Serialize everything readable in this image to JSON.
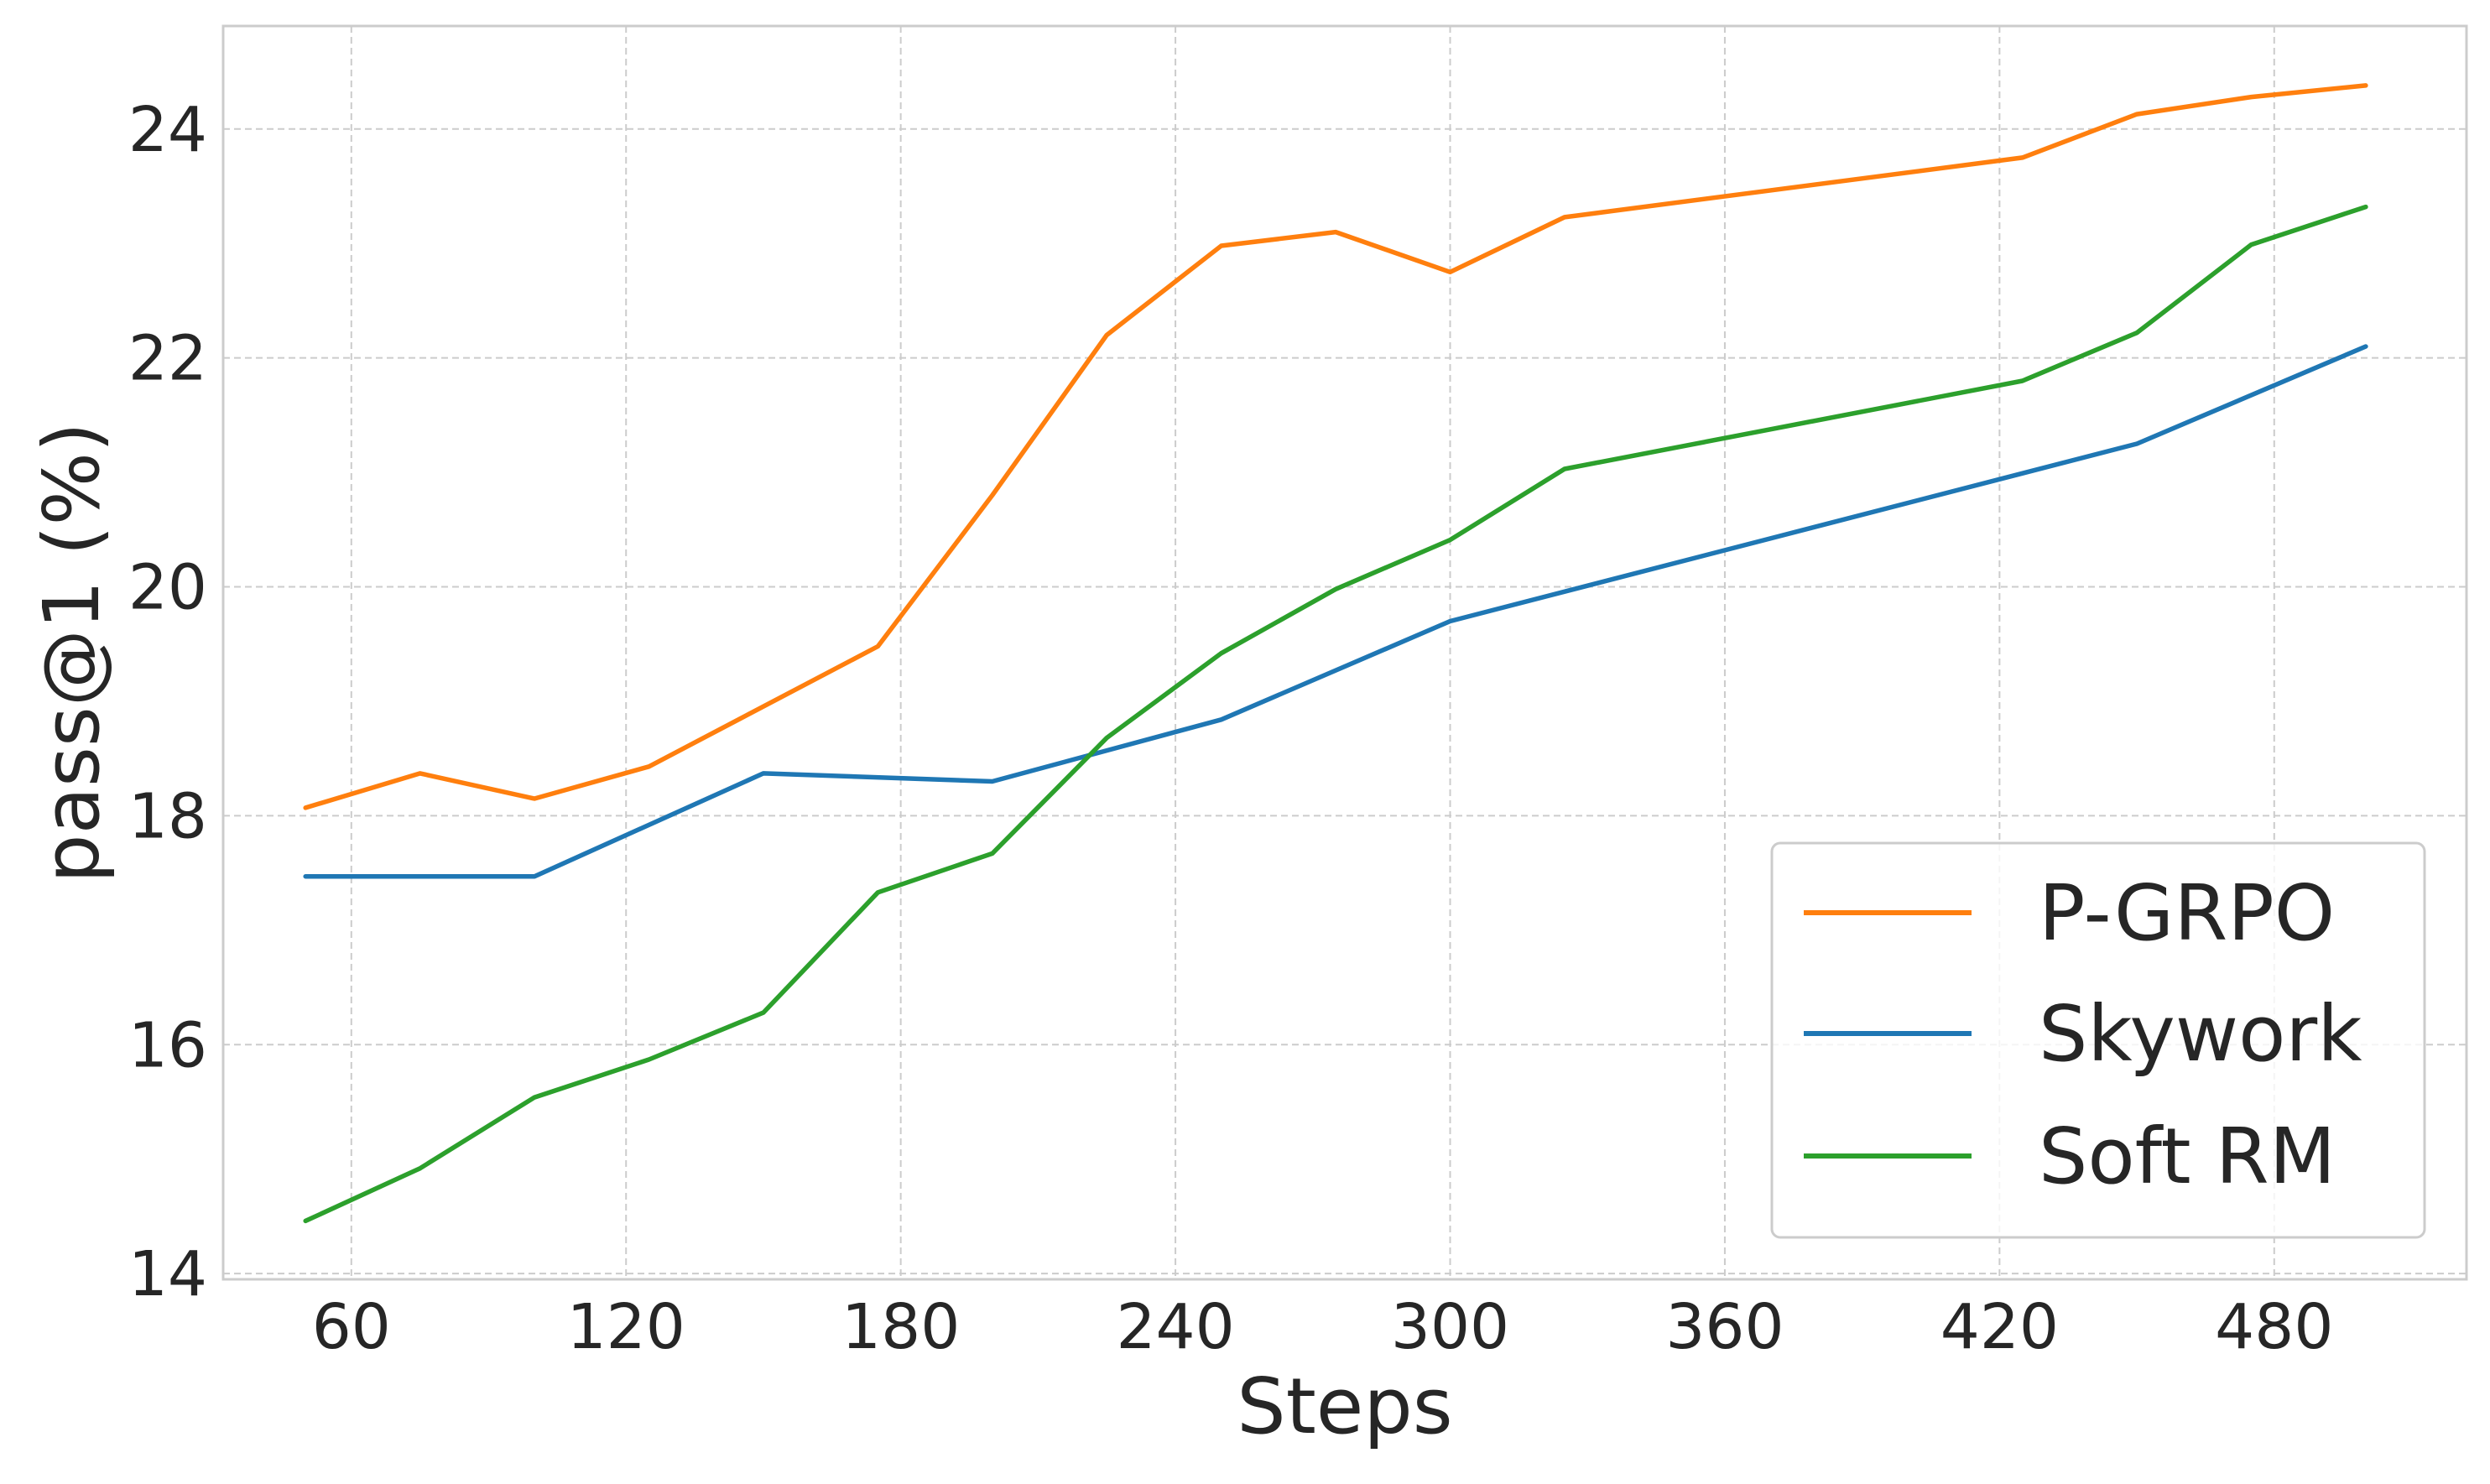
{
  "chart_data": {
    "type": "line",
    "title": "",
    "xlabel": "Steps",
    "ylabel": "pass@1 (%)",
    "xlim": [
      32,
      522
    ],
    "ylim": [
      13.95,
      24.9
    ],
    "xticks": [
      60,
      120,
      180,
      240,
      300,
      360,
      420,
      480
    ],
    "yticks": [
      14,
      16,
      18,
      20,
      22,
      24
    ],
    "grid": true,
    "grid_color": "#cccccc",
    "frame_color": "#cccccc",
    "legend_position": "lower-right",
    "x": [
      50,
      75,
      100,
      125,
      150,
      175,
      200,
      225,
      250,
      275,
      300,
      325,
      425,
      450,
      475,
      500
    ],
    "series": [
      {
        "name": "P-GRPO",
        "color": "#ff7f0e",
        "values": [
          18.07,
          18.37,
          18.15,
          18.43,
          null,
          19.48,
          20.8,
          22.2,
          22.98,
          23.1,
          22.75,
          23.23,
          23.75,
          24.13,
          24.28,
          24.38
        ]
      },
      {
        "name": "Skywork",
        "color": "#1f77b4",
        "values": [
          17.47,
          17.47,
          17.47,
          null,
          18.37,
          null,
          18.3,
          null,
          18.84,
          null,
          19.7,
          null,
          null,
          21.25,
          null,
          22.1
        ]
      },
      {
        "name": "Soft RM",
        "color": "#2ca02c",
        "values": [
          14.46,
          14.92,
          15.54,
          15.87,
          16.28,
          17.33,
          17.67,
          18.68,
          19.42,
          19.98,
          20.41,
          21.03,
          21.8,
          22.22,
          22.99,
          23.32
        ]
      }
    ]
  }
}
